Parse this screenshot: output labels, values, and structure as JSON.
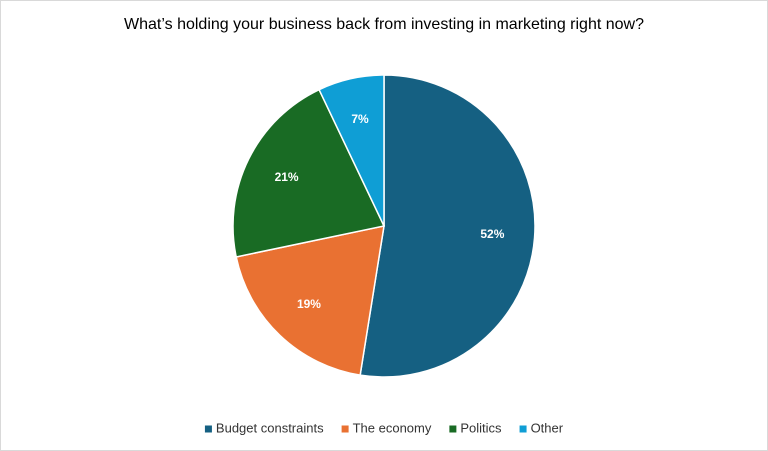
{
  "chart_data": {
    "type": "pie",
    "title": "What’s holding your business back from investing in marketing right now?",
    "categories": [
      "Budget constraints",
      "The economy",
      "Politics",
      "Other"
    ],
    "values": [
      52,
      19,
      21,
      7
    ],
    "value_labels": [
      "52%",
      "19%",
      "21%",
      "7%"
    ],
    "colors": [
      "#156082",
      "#e97132",
      "#196b24",
      "#0f9ed5"
    ],
    "legend": "bottom"
  }
}
